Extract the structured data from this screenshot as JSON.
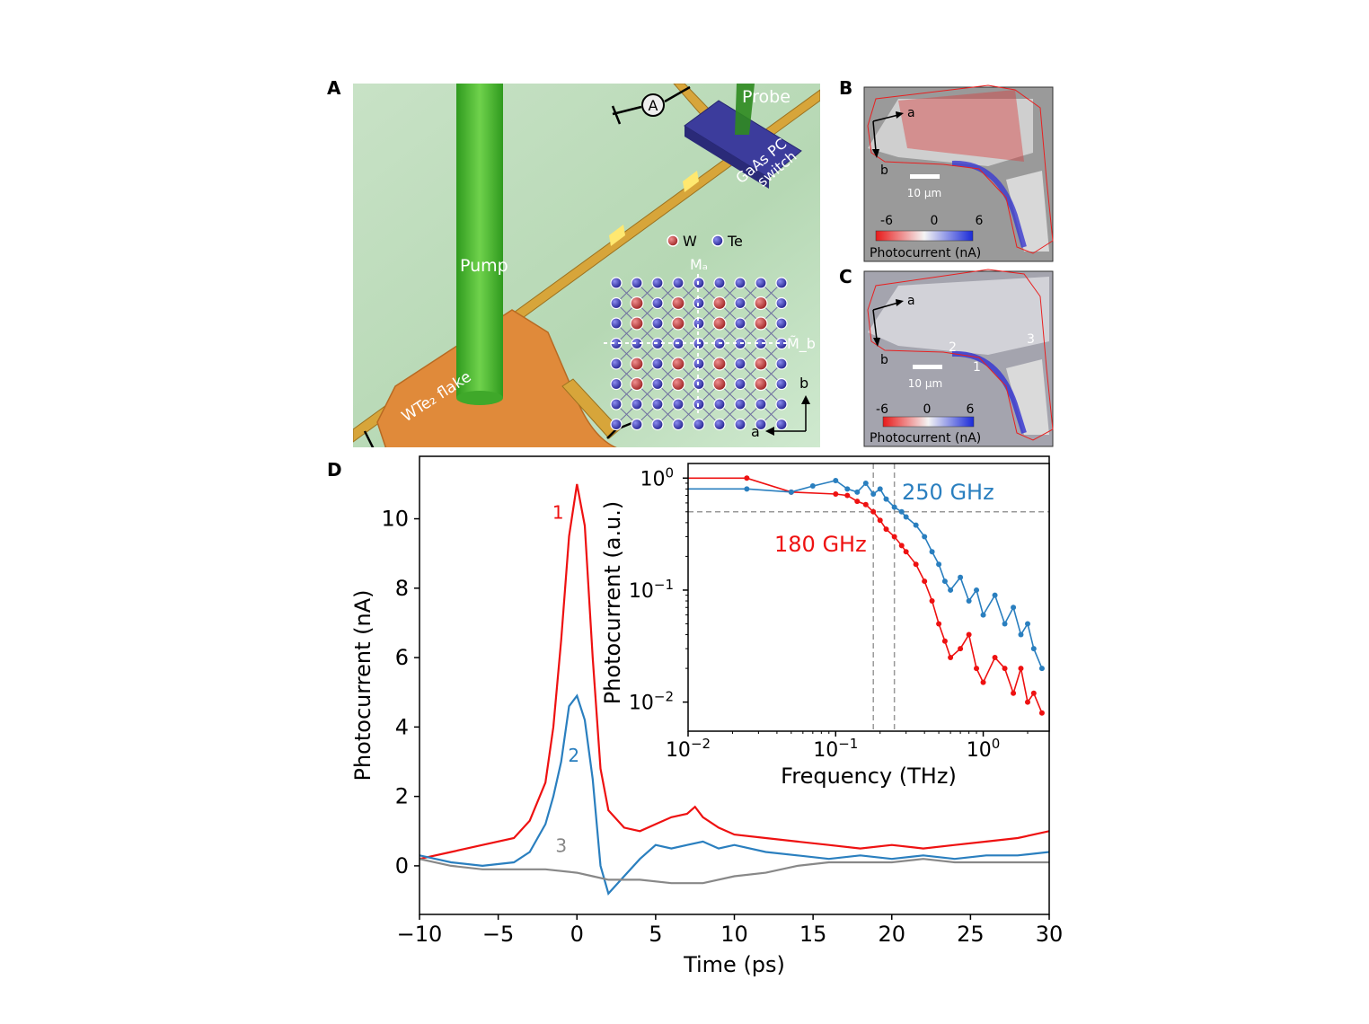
{
  "panels": {
    "A": "A",
    "B": "B",
    "C": "C",
    "D": "D"
  },
  "panel_a": {
    "pump_label": "Pump",
    "probe_label": "Probe",
    "switch_label_1": "GaAs PC",
    "switch_label_2": "switch",
    "flake_label": "WTe₂ flake",
    "ammeter_label": "A",
    "legend_w": "W",
    "legend_te": "Te",
    "mirror_a": "Mₐ",
    "mirror_b": "M̃_b",
    "axis_b": "b",
    "axis_a": "a",
    "colors": {
      "substrate": "#bcdcbc",
      "electrode": "#d7a53a",
      "flake": "#e08a3a",
      "pump": "#44b82a",
      "switch": "#3c3c9c",
      "w_atom": "#b02a2a",
      "te_atom": "#2a2aa8"
    }
  },
  "panel_b": {
    "axis_a": "a",
    "axis_b": "b",
    "scale_label": "10 µm",
    "cbar_min": "-6",
    "cbar_mid": "0",
    "cbar_max": "6",
    "cbar_label": "Photocurrent (nA)"
  },
  "panel_c": {
    "axis_a": "a",
    "axis_b": "b",
    "scale_label": "10 µm",
    "cbar_min": "-6",
    "cbar_mid": "0",
    "cbar_max": "6",
    "cbar_label": "Photocurrent (nA)",
    "pos1": "1",
    "pos2": "2",
    "pos3": "3"
  },
  "chart_data": [
    {
      "type": "line",
      "xlabel": "Time (ps)",
      "ylabel": "Photocurrent (nA)",
      "xlim": [
        -10,
        30
      ],
      "ylim": [
        -1.4,
        11.8
      ],
      "xticks": [
        "−10",
        "−5",
        "0",
        "5",
        "10",
        "15",
        "20",
        "25",
        "30"
      ],
      "yticks": [
        "0",
        "2",
        "4",
        "6",
        "8",
        "10"
      ],
      "series": [
        {
          "name": "1",
          "color": "#ee1111",
          "x": [
            -10,
            -8,
            -6,
            -4,
            -3,
            -2,
            -1.5,
            -1,
            -0.5,
            0,
            0.5,
            1,
            1.5,
            2,
            3,
            4,
            5,
            6,
            7,
            7.5,
            8,
            9,
            10,
            12,
            14,
            16,
            18,
            20,
            22,
            24,
            26,
            28,
            30
          ],
          "y": [
            0.2,
            0.4,
            0.6,
            0.8,
            1.3,
            2.4,
            4.0,
            6.5,
            9.5,
            11.0,
            9.8,
            6.0,
            2.8,
            1.6,
            1.1,
            1.0,
            1.2,
            1.4,
            1.5,
            1.7,
            1.4,
            1.1,
            0.9,
            0.8,
            0.7,
            0.6,
            0.5,
            0.6,
            0.5,
            0.6,
            0.7,
            0.8,
            1.0
          ]
        },
        {
          "name": "2",
          "color": "#2a7fbf",
          "x": [
            -10,
            -8,
            -6,
            -4,
            -3,
            -2,
            -1.5,
            -1,
            -0.5,
            0,
            0.5,
            1,
            1.5,
            2,
            3,
            4,
            5,
            6,
            7,
            8,
            9,
            10,
            12,
            14,
            16,
            18,
            20,
            22,
            24,
            26,
            28,
            30
          ],
          "y": [
            0.3,
            0.1,
            0.0,
            0.1,
            0.4,
            1.2,
            2.0,
            3.0,
            4.6,
            4.9,
            4.2,
            2.5,
            0.0,
            -0.8,
            -0.3,
            0.2,
            0.6,
            0.5,
            0.6,
            0.7,
            0.5,
            0.6,
            0.4,
            0.3,
            0.2,
            0.3,
            0.2,
            0.3,
            0.2,
            0.3,
            0.3,
            0.4
          ]
        },
        {
          "name": "3",
          "color": "#888888",
          "x": [
            -10,
            -8,
            -6,
            -4,
            -2,
            0,
            1,
            2,
            4,
            6,
            8,
            10,
            12,
            14,
            16,
            18,
            20,
            22,
            24,
            26,
            28,
            30
          ],
          "y": [
            0.2,
            0.0,
            -0.1,
            -0.1,
            -0.1,
            -0.2,
            -0.3,
            -0.4,
            -0.4,
            -0.5,
            -0.5,
            -0.3,
            -0.2,
            0.0,
            0.1,
            0.1,
            0.1,
            0.2,
            0.1,
            0.1,
            0.1,
            0.1
          ]
        }
      ],
      "annotations": [
        {
          "text": "1",
          "x": -1.2,
          "y": 10.0,
          "color": "#ee1111"
        },
        {
          "text": "2",
          "x": -0.2,
          "y": 3.0,
          "color": "#2a7fbf"
        },
        {
          "text": "3",
          "x": -1.0,
          "y": 0.4,
          "color": "#888888"
        }
      ]
    },
    {
      "type": "line",
      "scale": "log-log",
      "xlabel": "Frequency (THz)",
      "ylabel": "Photocurrent (a.u.)",
      "xlim": [
        0.01,
        2.8
      ],
      "ylim": [
        0.0055,
        1.35
      ],
      "xticks": [
        0.01,
        0.1,
        1
      ],
      "yticks": [
        0.01,
        0.1,
        1
      ],
      "vlines": [
        0.18,
        0.25
      ],
      "hline": 0.5,
      "series": [
        {
          "name": "180 GHz",
          "color": "#ee1111",
          "x": [
            0.01,
            0.025,
            0.05,
            0.1,
            0.12,
            0.14,
            0.16,
            0.18,
            0.2,
            0.22,
            0.25,
            0.28,
            0.3,
            0.35,
            0.4,
            0.45,
            0.5,
            0.55,
            0.6,
            0.7,
            0.8,
            0.9,
            1.0,
            1.2,
            1.4,
            1.6,
            1.8,
            2.0,
            2.2,
            2.5
          ],
          "y": [
            1.0,
            1.0,
            0.75,
            0.72,
            0.7,
            0.62,
            0.58,
            0.5,
            0.42,
            0.35,
            0.3,
            0.25,
            0.22,
            0.17,
            0.12,
            0.08,
            0.05,
            0.035,
            0.025,
            0.03,
            0.04,
            0.02,
            0.015,
            0.025,
            0.02,
            0.012,
            0.02,
            0.01,
            0.012,
            0.008
          ]
        },
        {
          "name": "250 GHz",
          "color": "#2a7fbf",
          "x": [
            0.01,
            0.025,
            0.05,
            0.07,
            0.1,
            0.12,
            0.14,
            0.16,
            0.18,
            0.2,
            0.22,
            0.25,
            0.28,
            0.3,
            0.35,
            0.4,
            0.45,
            0.5,
            0.55,
            0.6,
            0.7,
            0.8,
            0.9,
            1.0,
            1.2,
            1.4,
            1.6,
            1.8,
            2.0,
            2.2,
            2.5
          ],
          "y": [
            0.8,
            0.8,
            0.75,
            0.85,
            0.95,
            0.8,
            0.75,
            0.9,
            0.72,
            0.8,
            0.65,
            0.55,
            0.5,
            0.45,
            0.38,
            0.3,
            0.22,
            0.17,
            0.12,
            0.1,
            0.13,
            0.08,
            0.1,
            0.06,
            0.09,
            0.05,
            0.07,
            0.04,
            0.05,
            0.03,
            0.02
          ]
        }
      ],
      "annotations": [
        {
          "text": "250 GHz",
          "color": "#2a7fbf"
        },
        {
          "text": "180 GHz",
          "color": "#ee1111"
        }
      ]
    }
  ]
}
